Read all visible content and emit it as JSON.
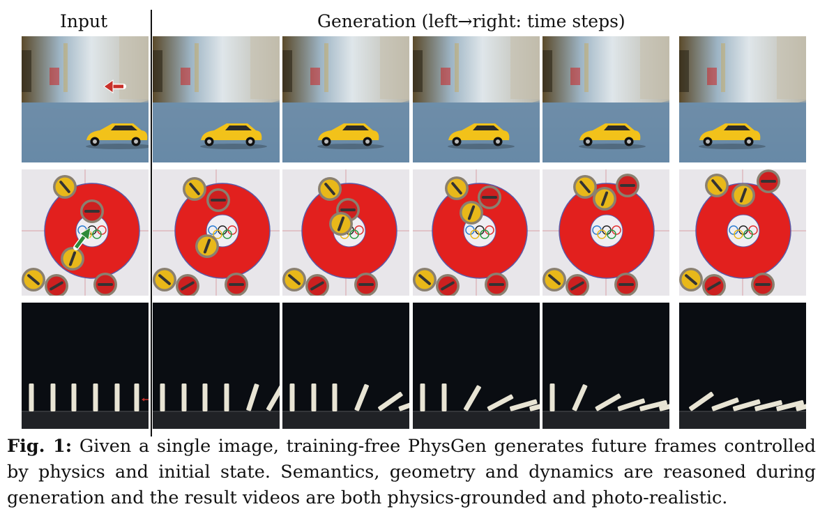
{
  "figure": {
    "header_input": "Input",
    "header_generation": "Generation (left→right: time steps)",
    "caption_label": "Fig. 1:",
    "caption_text": "Given a single image, training-free PhysGen generates future frames controlled by physics and initial state. Semantics, geometry and dynamics are reasoned during generation and the result videos are both physics-grounded and photo-realistic."
  },
  "rows": [
    {
      "scene": "toy-car",
      "frames": 6
    },
    {
      "scene": "curling-stones-olympic-target",
      "frames": 6
    },
    {
      "scene": "dominoes",
      "frames": 6
    }
  ],
  "colors": {
    "car_yellow": "#f2c21a",
    "target_red": "#e2201e",
    "stone_yellow": "#e8b81a",
    "stone_red": "#cc2020",
    "arrow_red": "#c8302a",
    "arrow_green": "#2e8b3a",
    "domino_ivory": "#e8e4d4",
    "dark_bg": "#0a0d12"
  },
  "icons": [
    "red-arrow-icon",
    "green-arrow-icon",
    "small-red-arrow-icon"
  ]
}
